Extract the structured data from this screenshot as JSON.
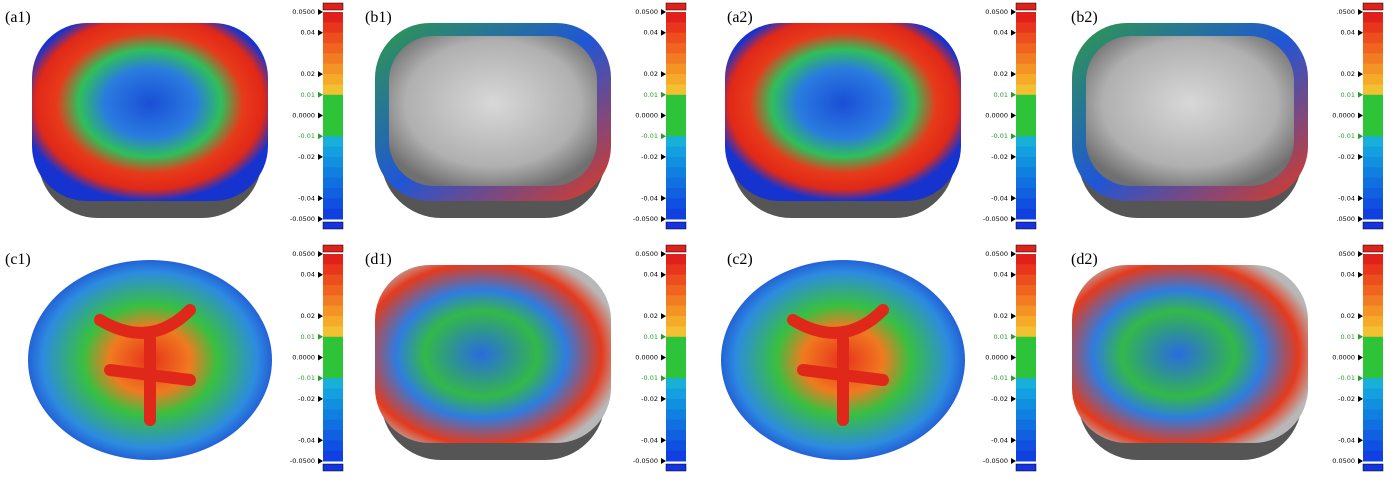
{
  "panels": [
    {
      "label": "(a1)",
      "scale": [
        "0.0500",
        "0.04",
        "0.02",
        "0.01",
        "0.0000",
        "-0.01",
        "-0.02",
        "-0.04",
        "-0.0500"
      ]
    },
    {
      "label": "(b1)",
      "scale": [
        "0.0500",
        "0.04",
        "0.02",
        "0.01",
        "0.0000",
        "-0.01",
        "-0.02",
        "-0.04",
        "-0.0500"
      ]
    },
    {
      "label": "(a2)",
      "scale": [
        "0.0500",
        "0.04",
        "0.02",
        "0.01",
        "0.0000",
        "-0.01",
        "-0.02",
        "-0.04",
        "-0.0500"
      ]
    },
    {
      "label": "(b2)",
      "scale": [
        ".0500",
        "0.04",
        "0.02",
        "0.01",
        "0.0000",
        "-0.01",
        "-0.02",
        "-0.04",
        ".0500"
      ]
    },
    {
      "label": "(c1)",
      "scale": [
        "0.0500",
        "0.04",
        "0.02",
        "0.01",
        "0.0000",
        "-0.01",
        "-0.02",
        "-0.04",
        "-0.0500"
      ]
    },
    {
      "label": "(d1)",
      "scale": [
        "0.0500",
        "0.04",
        "0.02",
        "0.01",
        "0.0000",
        "-0.01",
        "-0.02",
        "-0.04",
        "-0.0500"
      ]
    },
    {
      "label": "(c2)",
      "scale": [
        "0.0500",
        "0.04",
        "0.02",
        "0.01",
        "0.0000",
        "-0.01",
        "-0.02",
        "-0.04",
        "-0.0500"
      ]
    },
    {
      "label": "(d2)",
      "scale": [
        "0500",
        "0.04",
        "0.02",
        "0.01",
        "0.0000",
        "-0.01",
        "-0.02",
        "-0.04",
        "0.0500"
      ]
    }
  ]
}
